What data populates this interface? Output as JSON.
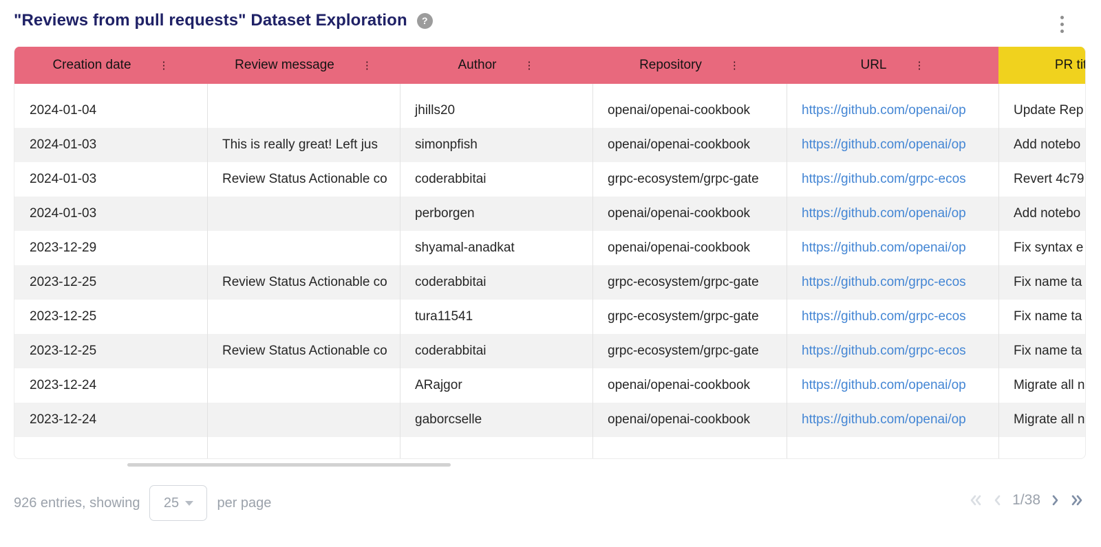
{
  "page": {
    "title": "\"Reviews from pull requests\" Dataset Exploration",
    "help_glyph": "?"
  },
  "colors": {
    "header_pink": "#E8697D",
    "header_yellow": "#F0D21E",
    "title_navy": "#1F2166",
    "link_blue": "#4486D4",
    "zebra_gray": "#F2F2F2"
  },
  "table": {
    "column_keys": [
      "creation_date",
      "review_message",
      "author",
      "repository",
      "url",
      "pr_title"
    ],
    "columns": [
      {
        "label": "Creation date",
        "menu_icon": "⋮",
        "color": "#E8697D"
      },
      {
        "label": "Review message",
        "menu_icon": "⋮",
        "color": "#E8697D"
      },
      {
        "label": "Author",
        "menu_icon": "⋮",
        "color": "#E8697D"
      },
      {
        "label": "Repository",
        "menu_icon": "⋮",
        "color": "#E8697D"
      },
      {
        "label": "URL",
        "menu_icon": "⋮",
        "color": "#E8697D"
      },
      {
        "label": "PR title",
        "menu_icon": "⋮",
        "color": "#F0D21E"
      }
    ],
    "rows": [
      {
        "creation_date": "2024-01-04",
        "review_message": "",
        "author": "jhills20",
        "repository": "openai/openai-cookbook",
        "url": "https://github.com/openai/op",
        "pr_title": "Update Rep"
      },
      {
        "creation_date": "2024-01-03",
        "review_message": "This is really great! Left jus",
        "author": "simonpfish",
        "repository": "openai/openai-cookbook",
        "url": "https://github.com/openai/op",
        "pr_title": "Add notebo"
      },
      {
        "creation_date": "2024-01-03",
        "review_message": "Review Status Actionable co",
        "author": "coderabbitai",
        "repository": "grpc-ecosystem/grpc-gate",
        "url": "https://github.com/grpc-ecos",
        "pr_title": "Revert 4c79"
      },
      {
        "creation_date": "2024-01-03",
        "review_message": "",
        "author": "perborgen",
        "repository": "openai/openai-cookbook",
        "url": "https://github.com/openai/op",
        "pr_title": "Add notebo"
      },
      {
        "creation_date": "2023-12-29",
        "review_message": "",
        "author": "shyamal-anadkat",
        "repository": "openai/openai-cookbook",
        "url": "https://github.com/openai/op",
        "pr_title": "Fix syntax e"
      },
      {
        "creation_date": "2023-12-25",
        "review_message": "Review Status Actionable co",
        "author": "coderabbitai",
        "repository": "grpc-ecosystem/grpc-gate",
        "url": "https://github.com/grpc-ecos",
        "pr_title": "Fix name ta"
      },
      {
        "creation_date": "2023-12-25",
        "review_message": "",
        "author": "tura11541",
        "repository": "grpc-ecosystem/grpc-gate",
        "url": "https://github.com/grpc-ecos",
        "pr_title": "Fix name ta"
      },
      {
        "creation_date": "2023-12-25",
        "review_message": "Review Status Actionable co",
        "author": "coderabbitai",
        "repository": "grpc-ecosystem/grpc-gate",
        "url": "https://github.com/grpc-ecos",
        "pr_title": "Fix name ta"
      },
      {
        "creation_date": "2023-12-24",
        "review_message": "",
        "author": "ARajgor",
        "repository": "openai/openai-cookbook",
        "url": "https://github.com/openai/op",
        "pr_title": "Migrate all n"
      },
      {
        "creation_date": "2023-12-24",
        "review_message": "",
        "author": "gaborcselle",
        "repository": "openai/openai-cookbook",
        "url": "https://github.com/openai/op",
        "pr_title": "Migrate all n"
      }
    ]
  },
  "footer": {
    "entries_text": "926 entries, showing",
    "page_size": "25",
    "per_page_text": "per page",
    "page_indicator": "1/38"
  }
}
